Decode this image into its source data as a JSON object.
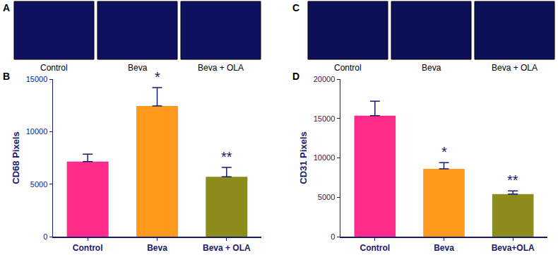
{
  "chart_data": [
    {
      "panel_label": "B",
      "type": "bar",
      "y_label": "CD68 Pixels",
      "categories": [
        "Control",
        "Beva",
        "Beva + OLA"
      ],
      "values": [
        7150,
        12450,
        5700
      ],
      "errors": [
        700,
        1750,
        900
      ],
      "colors": [
        "#ff2a8a",
        "#ff9a1f",
        "#8c8c1c"
      ],
      "significance": [
        null,
        "*",
        "**"
      ],
      "ylim": [
        0,
        15000
      ],
      "yticks": [
        0,
        5000,
        10000,
        15000
      ],
      "grid": false
    },
    {
      "panel_label": "D",
      "type": "bar",
      "y_label": "CD31 Pixels",
      "categories": [
        "Control",
        "Beva",
        "Beva+OLA"
      ],
      "values": [
        15350,
        8600,
        5400
      ],
      "errors": [
        1850,
        800,
        400
      ],
      "colors": [
        "#ff2a8a",
        "#ff9a1f",
        "#8c8c1c"
      ],
      "significance": [
        null,
        "*",
        "**"
      ],
      "ylim": [
        0,
        20000
      ],
      "yticks": [
        0,
        5000,
        10000,
        15000,
        20000
      ],
      "grid": false
    }
  ],
  "image_panels": [
    {
      "panel_label": "A",
      "captions": [
        "Control",
        "Beva",
        "Beva + OLA"
      ]
    },
    {
      "panel_label": "C",
      "captions": [
        "Control",
        "Beva",
        "Beva + OLA"
      ]
    }
  ]
}
